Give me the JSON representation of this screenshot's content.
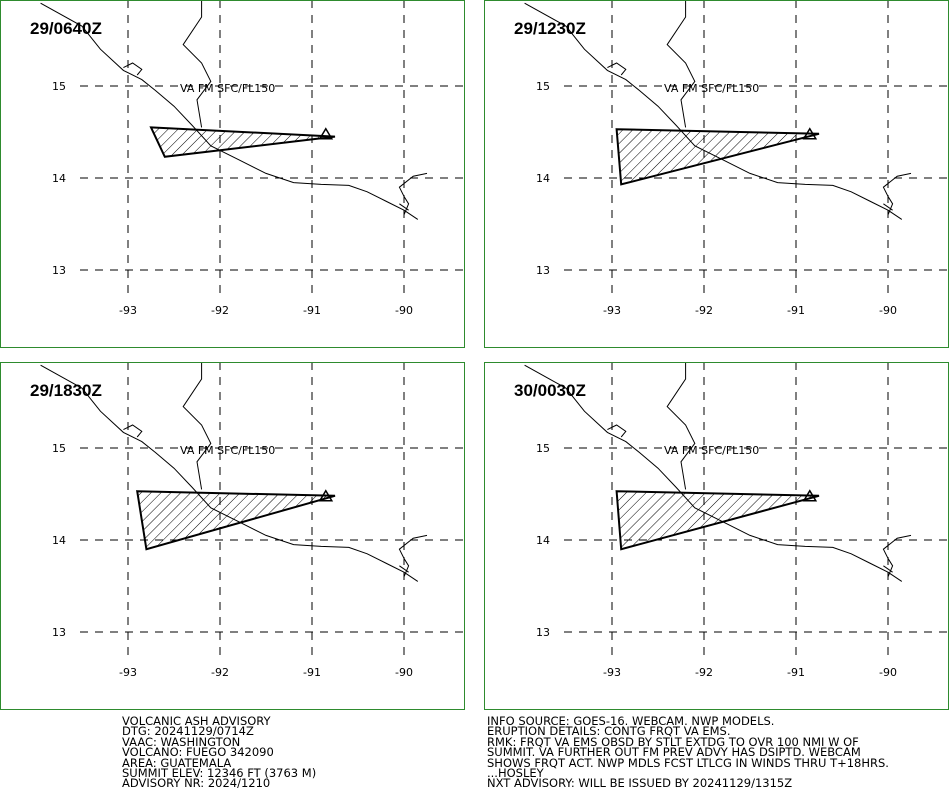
{
  "panels": [
    {
      "title": "29/0640Z",
      "label": "VA FM SFC/FL150",
      "polygon": [
        [
          -92.75,
          14.55
        ],
        [
          -90.75,
          14.45
        ],
        [
          -92.6,
          14.23
        ]
      ]
    },
    {
      "title": "29/1230Z",
      "label": "VA FM SFC/FL150",
      "polygon": [
        [
          -92.95,
          14.53
        ],
        [
          -90.75,
          14.48
        ],
        [
          -92.9,
          13.93
        ]
      ]
    },
    {
      "title": "29/1830Z",
      "label": "VA FM SFC/FL150",
      "polygon": [
        [
          -92.9,
          14.53
        ],
        [
          -90.75,
          14.48
        ],
        [
          -92.8,
          13.9
        ]
      ]
    },
    {
      "title": "30/0030Z",
      "label": "VA FM SFC/FL150",
      "polygon": [
        [
          -92.95,
          14.53
        ],
        [
          -90.75,
          14.48
        ],
        [
          -92.9,
          13.9
        ]
      ]
    }
  ],
  "axes": {
    "lon_ticks": [
      "-93",
      "-92",
      "-91",
      "-90"
    ],
    "lat_ticks": [
      "15",
      "14",
      "13"
    ],
    "lon_values": [
      -93,
      -92,
      -91,
      -90
    ],
    "lat_values": [
      15,
      14,
      13
    ]
  },
  "volcano": {
    "name": "FUEGO",
    "lon": -90.85,
    "lat": 14.47
  },
  "colors": {
    "frame": "#2e8b2e",
    "ink": "#000000"
  },
  "advisory_left": [
    "VOLCANIC ASH ADVISORY",
    "DTG: 20241129/0714Z",
    "VAAC: WASHINGTON",
    "VOLCANO: FUEGO 342090",
    "AREA: GUATEMALA",
    "SUMMIT ELEV: 12346 FT (3763 M)",
    "ADVISORY NR: 2024/1210"
  ],
  "advisory_right": [
    "INFO SOURCE: GOES-16. WEBCAM. NWP MODELS.",
    "ERUPTION DETAILS: CONTG FRQT VA EMS.",
    "RMK: FRQT VA EMS OBSD BY STLT EXTDG TO OVR 100 NMI W OF",
    "SUMMIT. VA FURTHER OUT FM PREV ADVY HAS DSIPTD. WEBCAM",
    "SHOWS FRQT ACT. NWP MDLS FCST LTLCG IN WINDS THRU T+18HRS.",
    "...HOSLEY",
    "NXT ADVISORY: WILL BE ISSUED BY 20241129/1315Z"
  ]
}
